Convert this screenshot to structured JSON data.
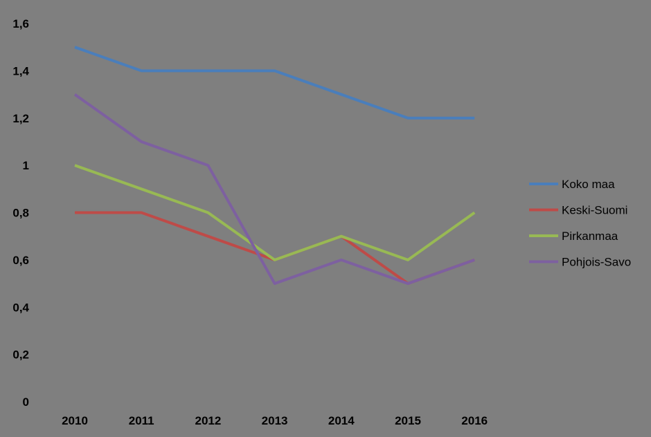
{
  "chart_data": {
    "type": "line",
    "title": "",
    "xlabel": "",
    "ylabel": "",
    "categories": [
      "2010",
      "2011",
      "2012",
      "2013",
      "2014",
      "2015",
      "2016"
    ],
    "ylim": [
      0,
      1.6
    ],
    "yticks": [
      "0",
      "0,2",
      "0,4",
      "0,6",
      "0,8",
      "1",
      "1,2",
      "1,4",
      "1,6"
    ],
    "grid": false,
    "legend_position": "right",
    "series": [
      {
        "name": "Koko maa",
        "color": "#4a7ebb",
        "values": [
          1.5,
          1.4,
          1.4,
          1.4,
          1.3,
          1.2,
          1.2
        ]
      },
      {
        "name": "Keski-Suomi",
        "color": "#be4b48",
        "values": [
          0.8,
          0.8,
          0.7,
          0.6,
          0.7,
          0.5,
          0.6
        ]
      },
      {
        "name": "Pirkanmaa",
        "color": "#98b954",
        "values": [
          1.0,
          0.9,
          0.8,
          0.6,
          0.7,
          0.6,
          0.8
        ]
      },
      {
        "name": "Pohjois-Savo",
        "color": "#7d60a0",
        "values": [
          1.3,
          1.1,
          1.0,
          0.5,
          0.6,
          0.5,
          0.6
        ]
      }
    ]
  }
}
